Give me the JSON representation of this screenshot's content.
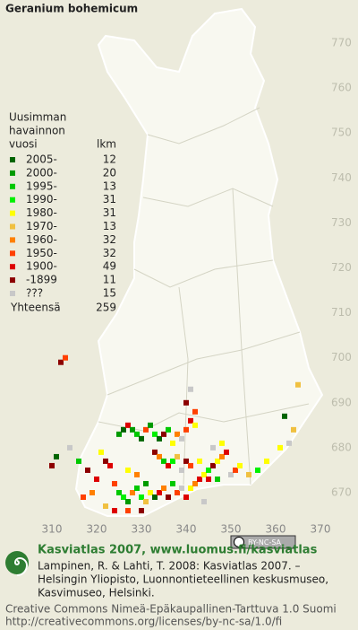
{
  "title": "Geranium bohemicum",
  "legend": {
    "heading": [
      "Uusimman",
      "havainnon",
      "vuosi"
    ],
    "count_heading": "lkm",
    "rows": [
      {
        "label": "2005-",
        "count": 12,
        "color": "#006400"
      },
      {
        "label": "2000-",
        "count": 20,
        "color": "#009a00"
      },
      {
        "label": "1995-",
        "count": 13,
        "color": "#00c800"
      },
      {
        "label": "1990-",
        "count": 31,
        "color": "#00f000"
      },
      {
        "label": "1980-",
        "count": 31,
        "color": "#ffff00"
      },
      {
        "label": "1970-",
        "count": 13,
        "color": "#f0c040"
      },
      {
        "label": "1960-",
        "count": 32,
        "color": "#ff8000"
      },
      {
        "label": "1950-",
        "count": 32,
        "color": "#ff4000"
      },
      {
        "label": "1900-",
        "count": 49,
        "color": "#dd0000"
      },
      {
        "label": "-1899",
        "count": 11,
        "color": "#8c0000"
      },
      {
        "label": "???",
        "count": 15,
        "color": "#c8c8c8"
      }
    ],
    "total_label": "Yhteensä",
    "total": 259
  },
  "map": {
    "xticks": [
      310,
      320,
      330,
      340,
      350,
      360,
      370
    ],
    "yticks": [
      670,
      680,
      690,
      700,
      710,
      720,
      730,
      740,
      750,
      760,
      770
    ],
    "records": [
      [
        321,
        679,
        4
      ],
      [
        322,
        677,
        9
      ],
      [
        323,
        676,
        8
      ],
      [
        324,
        672,
        7
      ],
      [
        325,
        670,
        2
      ],
      [
        326,
        669,
        3
      ],
      [
        327,
        668,
        1
      ],
      [
        328,
        670,
        6
      ],
      [
        329,
        671,
        2
      ],
      [
        330,
        669,
        3
      ],
      [
        331,
        668,
        5
      ],
      [
        332,
        670,
        4
      ],
      [
        333,
        669,
        0
      ],
      [
        334,
        670,
        8
      ],
      [
        335,
        671,
        6
      ],
      [
        336,
        669,
        9
      ],
      [
        337,
        672,
        2
      ],
      [
        338,
        670,
        7
      ],
      [
        339,
        671,
        10
      ],
      [
        340,
        669,
        8
      ],
      [
        341,
        671,
        4
      ],
      [
        342,
        672,
        6
      ],
      [
        343,
        673,
        8
      ],
      [
        344,
        674,
        4
      ],
      [
        345,
        675,
        3
      ],
      [
        346,
        676,
        9
      ],
      [
        347,
        677,
        4
      ],
      [
        348,
        678,
        6
      ],
      [
        349,
        679,
        8
      ],
      [
        325,
        683,
        1
      ],
      [
        326,
        684,
        0
      ],
      [
        327,
        685,
        8
      ],
      [
        328,
        684,
        1
      ],
      [
        329,
        683,
        2
      ],
      [
        330,
        682,
        0
      ],
      [
        331,
        684,
        7
      ],
      [
        332,
        685,
        1
      ],
      [
        333,
        683,
        3
      ],
      [
        334,
        682,
        0
      ],
      [
        335,
        683,
        9
      ],
      [
        336,
        684,
        2
      ],
      [
        337,
        681,
        4
      ],
      [
        338,
        683,
        6
      ],
      [
        339,
        682,
        10
      ],
      [
        340,
        684,
        7
      ],
      [
        341,
        686,
        8
      ],
      [
        342,
        685,
        4
      ],
      [
        333,
        679,
        9
      ],
      [
        334,
        678,
        6
      ],
      [
        335,
        677,
        2
      ],
      [
        336,
        676,
        8
      ],
      [
        337,
        677,
        3
      ],
      [
        338,
        678,
        5
      ],
      [
        339,
        675,
        10
      ],
      [
        340,
        677,
        9
      ],
      [
        341,
        676,
        7
      ],
      [
        343,
        677,
        4
      ],
      [
        345,
        673,
        8
      ],
      [
        347,
        673,
        2
      ],
      [
        350,
        674,
        10
      ],
      [
        351,
        675,
        7
      ],
      [
        352,
        676,
        4
      ],
      [
        354,
        674,
        5
      ],
      [
        356,
        675,
        3
      ],
      [
        358,
        677,
        4
      ],
      [
        361,
        680,
        4
      ],
      [
        363,
        681,
        10
      ],
      [
        364,
        684,
        5
      ],
      [
        365,
        694,
        5
      ],
      [
        362,
        687,
        0
      ],
      [
        340,
        690,
        9
      ],
      [
        341,
        693,
        10
      ],
      [
        342,
        688,
        7
      ],
      [
        312,
        699,
        9
      ],
      [
        313,
        700,
        7
      ],
      [
        310,
        676,
        9
      ],
      [
        311,
        678,
        0
      ],
      [
        314,
        680,
        10
      ],
      [
        316,
        677,
        2
      ],
      [
        318,
        675,
        9
      ],
      [
        320,
        673,
        8
      ],
      [
        319,
        670,
        6
      ],
      [
        317,
        669,
        7
      ],
      [
        322,
        667,
        5
      ],
      [
        324,
        666,
        8
      ],
      [
        327,
        666,
        7
      ],
      [
        330,
        666,
        9
      ],
      [
        331,
        672,
        1
      ],
      [
        329,
        674,
        6
      ],
      [
        327,
        675,
        4
      ],
      [
        346,
        680,
        10
      ],
      [
        348,
        681,
        4
      ],
      [
        344,
        668,
        10
      ]
    ]
  },
  "badge": "BY-NC-SA",
  "footer": {
    "heading": "Kasviatlas 2007, www.luomus.fi/kasviatlas",
    "citation": [
      "Lampinen, R. & Lahti, T. 2008: Kasviatlas 2007. –",
      "Helsingin Yliopisto, Luonnontieteellinen keskusmuseo,",
      "Kasvimuseo, Helsinki."
    ],
    "license": [
      "Creative Commons Nimeä-Epäkaupallinen-Tarttuva 1.0 Suomi",
      "http://creativecommons.org/licenses/by-nc-sa/1.0/fi"
    ]
  }
}
